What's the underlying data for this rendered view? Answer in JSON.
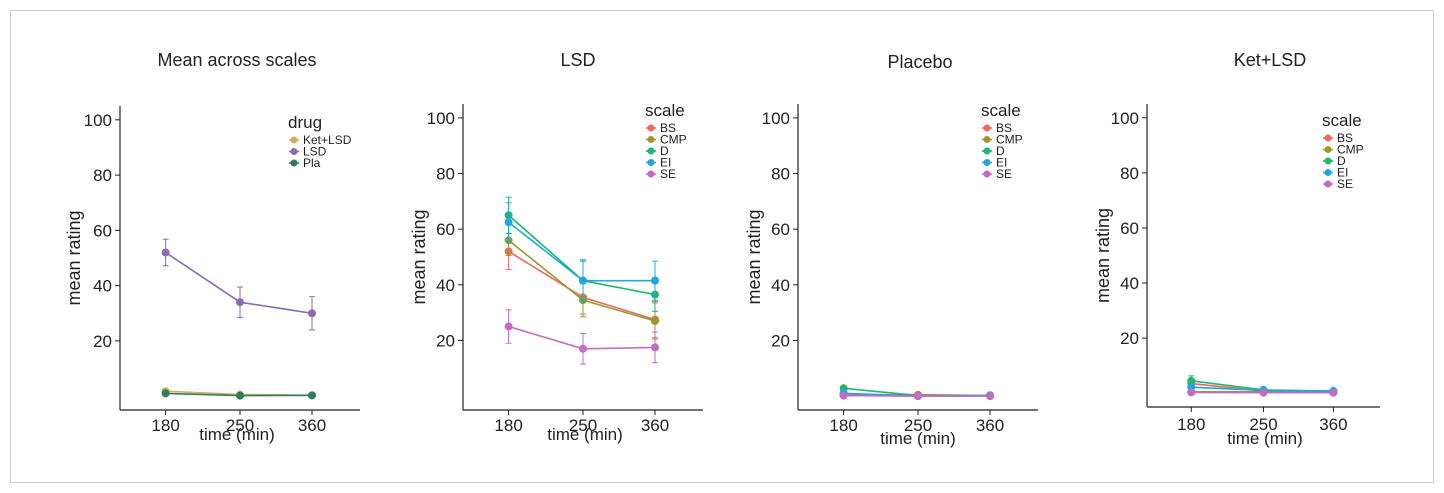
{
  "chart_data": [
    {
      "type": "line",
      "title": "Mean across scales",
      "xlabel": "time (min)",
      "ylabel": "mean rating",
      "x": [
        180,
        250,
        360
      ],
      "ylim": [
        -5,
        105
      ],
      "yticks": [
        20,
        40,
        60,
        80,
        100
      ],
      "grid": false,
      "legend_title": "drug",
      "legend_position": "top-right",
      "series": [
        {
          "name": "Ket+LSD",
          "color": "#d4aa5c",
          "values": [
            1.8,
            0.6,
            0.3
          ],
          "err": [
            0.6,
            0.4,
            0.3
          ]
        },
        {
          "name": "LSD",
          "color": "#8b6bb3",
          "values": [
            52,
            34,
            30
          ],
          "err": [
            4.8,
            5.5,
            6
          ]
        },
        {
          "name": "Pla",
          "color": "#2e7d5b",
          "values": [
            1.0,
            0.2,
            0.3
          ],
          "err": [
            0.4,
            0.3,
            0.3
          ]
        }
      ]
    },
    {
      "type": "line",
      "title": "LSD",
      "xlabel": "time (min)",
      "ylabel": "mean rating",
      "x": [
        180,
        250,
        360
      ],
      "ylim": [
        -5,
        105
      ],
      "yticks": [
        20,
        40,
        60,
        80,
        100
      ],
      "grid": false,
      "legend_title": "scale",
      "legend_position": "top-right",
      "series": [
        {
          "name": "BS",
          "color": "#f0695e",
          "values": [
            52,
            35.5,
            27.5
          ],
          "err": [
            6.5,
            6,
            6.5
          ]
        },
        {
          "name": "CMP",
          "color": "#9a9a2c",
          "values": [
            56,
            34.5,
            27
          ],
          "err": [
            5.5,
            6,
            6.5
          ]
        },
        {
          "name": "D",
          "color": "#1fb573",
          "values": [
            65,
            41.5,
            36.5
          ],
          "err": [
            6.5,
            7,
            6
          ]
        },
        {
          "name": "EI",
          "color": "#1fa8e0",
          "values": [
            62.5,
            41.5,
            41.5
          ],
          "err": [
            7,
            7.5,
            7
          ]
        },
        {
          "name": "SE",
          "color": "#c56cc1",
          "values": [
            25,
            17,
            17.5
          ],
          "err": [
            6,
            5.5,
            5.5
          ]
        }
      ]
    },
    {
      "type": "line",
      "title": "Placebo",
      "xlabel": "time (min)",
      "ylabel": "mean rating",
      "x": [
        180,
        250,
        360
      ],
      "ylim": [
        -5,
        105
      ],
      "yticks": [
        20,
        40,
        60,
        80,
        100
      ],
      "grid": false,
      "legend_title": "scale",
      "legend_position": "top-right",
      "series": [
        {
          "name": "BS",
          "color": "#f0695e",
          "values": [
            0.5,
            0.5,
            0.2
          ],
          "err": [
            0.3,
            0.3,
            0.2
          ]
        },
        {
          "name": "CMP",
          "color": "#9a9a2c",
          "values": [
            0.2,
            0.0,
            0.0
          ],
          "err": [
            0.2,
            0.1,
            0.1
          ]
        },
        {
          "name": "D",
          "color": "#1fb573",
          "values": [
            2.8,
            0.2,
            0.3
          ],
          "err": [
            0.8,
            0.2,
            0.2
          ]
        },
        {
          "name": "EI",
          "color": "#1fa8e0",
          "values": [
            1.0,
            0.0,
            0.2
          ],
          "err": [
            0.5,
            0.1,
            0.2
          ]
        },
        {
          "name": "SE",
          "color": "#c56cc1",
          "values": [
            0.2,
            0.0,
            0.0
          ],
          "err": [
            0.2,
            0.1,
            0.1
          ]
        }
      ]
    },
    {
      "type": "line",
      "title": "Ket+LSD",
      "xlabel": "time (min)",
      "ylabel": "mean rating",
      "x": [
        180,
        250,
        360
      ],
      "ylim": [
        -5,
        105
      ],
      "yticks": [
        20,
        40,
        60,
        80,
        100
      ],
      "grid": false,
      "legend_title": "scale",
      "legend_position": "top-right",
      "series": [
        {
          "name": "BS",
          "color": "#f0695e",
          "values": [
            3.5,
            0.8,
            0.5
          ],
          "err": [
            1.2,
            0.5,
            0.4
          ]
        },
        {
          "name": "CMP",
          "color": "#9a9a2c",
          "values": [
            0.5,
            0.5,
            0.2
          ],
          "err": [
            0.4,
            0.3,
            0.2
          ]
        },
        {
          "name": "D",
          "color": "#1fb573",
          "values": [
            4.5,
            1.2,
            0.8
          ],
          "err": [
            1.8,
            0.6,
            0.5
          ]
        },
        {
          "name": "EI",
          "color": "#1fa8e0",
          "values": [
            2.2,
            1.0,
            0.8
          ],
          "err": [
            1.0,
            0.5,
            0.5
          ]
        },
        {
          "name": "SE",
          "color": "#c56cc1",
          "values": [
            0.3,
            0.2,
            0.2
          ],
          "err": [
            0.3,
            0.2,
            0.2
          ]
        }
      ]
    }
  ]
}
